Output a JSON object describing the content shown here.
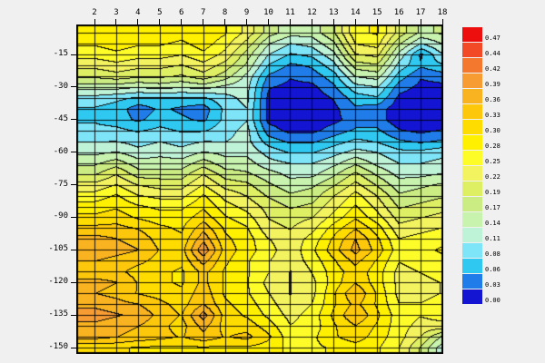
{
  "chart_data": {
    "type": "heatmap",
    "title": "",
    "xlabel": "",
    "ylabel": "",
    "grid": true,
    "legend_position": "right-colorbar",
    "xlim": [
      1.16,
      18.04
    ],
    "ylim": [
      -152.9,
      -1.2
    ],
    "x_ticks": [
      "2",
      "3",
      "4",
      "5",
      "6",
      "7",
      "8",
      "9",
      "10",
      "11",
      "12",
      "13",
      "14",
      "15",
      "16",
      "17",
      "18"
    ],
    "y_ticks": [
      "-15",
      "-30",
      "-45",
      "-60",
      "-75",
      "-90",
      "-105",
      "-120",
      "-135",
      "-150"
    ],
    "x": [
      2,
      3,
      4,
      5,
      6,
      7,
      8,
      9,
      10,
      11,
      12,
      13,
      14,
      15,
      16,
      17,
      18
    ],
    "y": [
      -5,
      -10,
      -15,
      -20,
      -25,
      -30,
      -35,
      -40,
      -45,
      -50,
      -55,
      -60,
      -65,
      -70,
      -75,
      -80,
      -85,
      -90,
      -95,
      -100,
      -105,
      -110,
      -115,
      -120,
      -125,
      -130,
      -135,
      -140,
      -145,
      -150
    ],
    "values": [
      [
        0.3,
        0.3,
        0.29,
        0.3,
        0.29,
        0.3,
        0.28,
        0.24,
        0.18,
        0.15,
        0.15,
        0.19,
        0.27,
        0.28,
        0.21,
        0.16,
        0.17
      ],
      [
        0.28,
        0.29,
        0.28,
        0.28,
        0.27,
        0.29,
        0.26,
        0.21,
        0.14,
        0.11,
        0.12,
        0.16,
        0.25,
        0.26,
        0.17,
        0.11,
        0.14
      ],
      [
        0.26,
        0.27,
        0.26,
        0.26,
        0.25,
        0.27,
        0.24,
        0.18,
        0.11,
        0.08,
        0.09,
        0.13,
        0.22,
        0.23,
        0.13,
        0.05,
        0.11
      ],
      [
        0.23,
        0.24,
        0.23,
        0.23,
        0.22,
        0.24,
        0.21,
        0.16,
        0.08,
        0.05,
        0.06,
        0.1,
        0.18,
        0.19,
        0.1,
        0.06,
        0.08
      ],
      [
        0.2,
        0.21,
        0.2,
        0.2,
        0.19,
        0.21,
        0.18,
        0.13,
        0.05,
        0.03,
        0.04,
        0.07,
        0.14,
        0.15,
        0.07,
        0.03,
        0.04
      ],
      [
        0.15,
        0.15,
        0.14,
        0.15,
        0.14,
        0.15,
        0.13,
        0.12,
        0.03,
        0.02,
        0.02,
        0.05,
        0.1,
        0.11,
        0.04,
        0.02,
        0.02
      ],
      [
        0.1,
        0.09,
        0.08,
        0.08,
        0.08,
        0.08,
        0.1,
        0.12,
        0.02,
        0.01,
        0.01,
        0.03,
        0.07,
        0.08,
        0.02,
        0.01,
        0.01
      ],
      [
        0.08,
        0.07,
        0.04,
        0.06,
        0.05,
        0.04,
        0.09,
        0.11,
        0.02,
        0.01,
        0.01,
        0.02,
        0.05,
        0.04,
        0.01,
        0.01,
        0.01
      ],
      [
        0.08,
        0.07,
        0.05,
        0.07,
        0.06,
        0.05,
        0.09,
        0.11,
        0.02,
        0.01,
        0.01,
        0.02,
        0.04,
        0.04,
        0.01,
        0.01,
        0.01
      ],
      [
        0.09,
        0.09,
        0.08,
        0.09,
        0.08,
        0.08,
        0.1,
        0.12,
        0.04,
        0.02,
        0.02,
        0.04,
        0.06,
        0.06,
        0.03,
        0.02,
        0.03
      ],
      [
        0.11,
        0.11,
        0.1,
        0.11,
        0.1,
        0.11,
        0.11,
        0.12,
        0.07,
        0.05,
        0.05,
        0.07,
        0.09,
        0.08,
        0.06,
        0.05,
        0.06
      ],
      [
        0.13,
        0.14,
        0.12,
        0.13,
        0.12,
        0.14,
        0.13,
        0.13,
        0.1,
        0.08,
        0.08,
        0.1,
        0.12,
        0.11,
        0.09,
        0.09,
        0.1
      ],
      [
        0.16,
        0.18,
        0.15,
        0.15,
        0.15,
        0.18,
        0.15,
        0.15,
        0.12,
        0.11,
        0.11,
        0.13,
        0.16,
        0.13,
        0.11,
        0.11,
        0.12
      ],
      [
        0.19,
        0.22,
        0.18,
        0.18,
        0.18,
        0.22,
        0.18,
        0.17,
        0.15,
        0.13,
        0.13,
        0.16,
        0.2,
        0.16,
        0.13,
        0.13,
        0.14
      ],
      [
        0.23,
        0.25,
        0.22,
        0.21,
        0.21,
        0.25,
        0.21,
        0.2,
        0.17,
        0.15,
        0.16,
        0.19,
        0.23,
        0.19,
        0.15,
        0.16,
        0.17
      ],
      [
        0.26,
        0.28,
        0.25,
        0.24,
        0.24,
        0.28,
        0.24,
        0.22,
        0.19,
        0.17,
        0.18,
        0.22,
        0.26,
        0.22,
        0.17,
        0.18,
        0.19
      ],
      [
        0.29,
        0.3,
        0.28,
        0.27,
        0.27,
        0.3,
        0.26,
        0.24,
        0.21,
        0.19,
        0.2,
        0.24,
        0.28,
        0.24,
        0.19,
        0.2,
        0.21
      ],
      [
        0.31,
        0.32,
        0.3,
        0.29,
        0.29,
        0.32,
        0.28,
        0.26,
        0.22,
        0.21,
        0.22,
        0.26,
        0.3,
        0.26,
        0.21,
        0.22,
        0.23
      ],
      [
        0.34,
        0.34,
        0.33,
        0.31,
        0.3,
        0.35,
        0.3,
        0.28,
        0.23,
        0.22,
        0.24,
        0.29,
        0.33,
        0.29,
        0.23,
        0.24,
        0.25
      ],
      [
        0.37,
        0.36,
        0.35,
        0.32,
        0.31,
        0.38,
        0.31,
        0.29,
        0.25,
        0.23,
        0.26,
        0.31,
        0.36,
        0.31,
        0.25,
        0.26,
        0.27
      ],
      [
        0.38,
        0.37,
        0.36,
        0.33,
        0.32,
        0.41,
        0.32,
        0.29,
        0.26,
        0.23,
        0.27,
        0.32,
        0.37,
        0.32,
        0.26,
        0.27,
        0.28
      ],
      [
        0.36,
        0.35,
        0.34,
        0.32,
        0.31,
        0.37,
        0.31,
        0.28,
        0.25,
        0.23,
        0.26,
        0.3,
        0.34,
        0.3,
        0.25,
        0.26,
        0.27
      ],
      [
        0.34,
        0.34,
        0.32,
        0.31,
        0.3,
        0.34,
        0.3,
        0.28,
        0.25,
        0.22,
        0.25,
        0.29,
        0.32,
        0.29,
        0.24,
        0.25,
        0.26
      ],
      [
        0.37,
        0.36,
        0.33,
        0.31,
        0.3,
        0.34,
        0.3,
        0.28,
        0.24,
        0.22,
        0.24,
        0.29,
        0.33,
        0.29,
        0.24,
        0.24,
        0.25
      ],
      [
        0.36,
        0.35,
        0.33,
        0.32,
        0.31,
        0.35,
        0.3,
        0.28,
        0.25,
        0.22,
        0.24,
        0.3,
        0.36,
        0.3,
        0.24,
        0.24,
        0.25
      ],
      [
        0.38,
        0.37,
        0.36,
        0.34,
        0.32,
        0.36,
        0.31,
        0.29,
        0.26,
        0.23,
        0.25,
        0.3,
        0.34,
        0.3,
        0.25,
        0.25,
        0.26
      ],
      [
        0.4,
        0.39,
        0.38,
        0.35,
        0.33,
        0.4,
        0.32,
        0.3,
        0.27,
        0.24,
        0.26,
        0.31,
        0.36,
        0.31,
        0.26,
        0.25,
        0.26
      ],
      [
        0.38,
        0.37,
        0.36,
        0.34,
        0.32,
        0.37,
        0.32,
        0.32,
        0.29,
        0.25,
        0.26,
        0.3,
        0.33,
        0.3,
        0.26,
        0.24,
        0.24
      ],
      [
        0.37,
        0.36,
        0.35,
        0.34,
        0.33,
        0.35,
        0.33,
        0.34,
        0.31,
        0.26,
        0.27,
        0.3,
        0.32,
        0.29,
        0.26,
        0.22,
        0.16
      ],
      [
        0.31,
        0.31,
        0.3,
        0.3,
        0.3,
        0.3,
        0.3,
        0.3,
        0.29,
        0.27,
        0.27,
        0.28,
        0.29,
        0.28,
        0.25,
        0.19,
        0.12
      ]
    ],
    "levels": [
      0.0,
      0.03,
      0.06,
      0.08,
      0.11,
      0.14,
      0.17,
      0.19,
      0.22,
      0.25,
      0.28,
      0.3,
      0.33,
      0.36,
      0.39,
      0.42,
      0.44,
      0.47
    ],
    "colorbar": {
      "labels_top_to_bottom": [
        "0.47",
        "0.44",
        "0.42",
        "0.39",
        "0.36",
        "0.33",
        "0.30",
        "0.28",
        "0.25",
        "0.22",
        "0.19",
        "0.17",
        "0.14",
        "0.11",
        "0.08",
        "0.06",
        "0.03",
        "0.00"
      ],
      "colors_top_to_bottom": [
        "#ED0E0E",
        "#F24A26",
        "#F4782E",
        "#F79B33",
        "#FAB320",
        "#FDC70B",
        "#FFDC00",
        "#FFF000",
        "#FDFC28",
        "#F3F360",
        "#DFEF63",
        "#CBEC82",
        "#C7F3AE",
        "#BFF3D8",
        "#7EE4F7",
        "#2FC8F1",
        "#1F7CE9",
        "#1315D3"
      ]
    }
  },
  "colors": {
    "background": "#F0F0F0",
    "frame": "#000000",
    "mesh": "#000000",
    "contour_line": "#000000"
  }
}
